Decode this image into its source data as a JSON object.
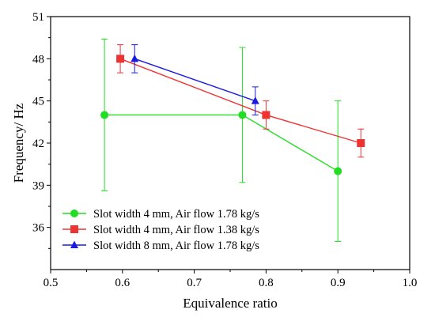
{
  "chart_data": {
    "type": "line",
    "title": "",
    "xlabel": "Equivalence ratio",
    "ylabel": "Frequency/ Hz",
    "xlim": [
      0.5,
      1.0
    ],
    "ylim": [
      33,
      51
    ],
    "xticks": [
      0.5,
      0.6,
      0.7,
      0.8,
      0.9,
      1.0
    ],
    "xtick_labels": [
      "0.5",
      "0.6",
      "0.7",
      "0.8",
      "0.9",
      "1.0"
    ],
    "yticks": [
      36,
      39,
      42,
      45,
      48,
      51
    ],
    "ytick_labels": [
      "36",
      "39",
      "42",
      "45",
      "48",
      "51"
    ],
    "grid": false,
    "legend_position": "bottom-left",
    "series": [
      {
        "name": "Slot width 4 mm, Air flow 1.78 kg/s",
        "color": "#22dd22",
        "marker": "circle",
        "points": [
          {
            "x": 0.575,
            "y": 44.0,
            "err_low": 38.6,
            "err_high": 49.4
          },
          {
            "x": 0.767,
            "y": 44.0,
            "err_low": 39.2,
            "err_high": 48.8
          },
          {
            "x": 0.9,
            "y": 40.0,
            "err_low": 35.0,
            "err_high": 45.0
          }
        ]
      },
      {
        "name": "Slot width 4 mm, Air flow 1.38 kg/s",
        "color": "#ee3333",
        "marker": "square",
        "points": [
          {
            "x": 0.597,
            "y": 48.0,
            "err_low": 47.0,
            "err_high": 49.0
          },
          {
            "x": 0.8,
            "y": 44.0,
            "err_low": 43.0,
            "err_high": 45.0
          },
          {
            "x": 0.932,
            "y": 42.0,
            "err_low": 41.0,
            "err_high": 43.0
          }
        ]
      },
      {
        "name": "Slot width 8 mm, Air flow 1.78 kg/s",
        "color": "#1a1ae0",
        "marker": "triangle",
        "points": [
          {
            "x": 0.617,
            "y": 48.0,
            "err_low": 47.0,
            "err_high": 49.0
          },
          {
            "x": 0.785,
            "y": 45.0,
            "err_low": 44.0,
            "err_high": 46.0
          }
        ]
      }
    ]
  }
}
